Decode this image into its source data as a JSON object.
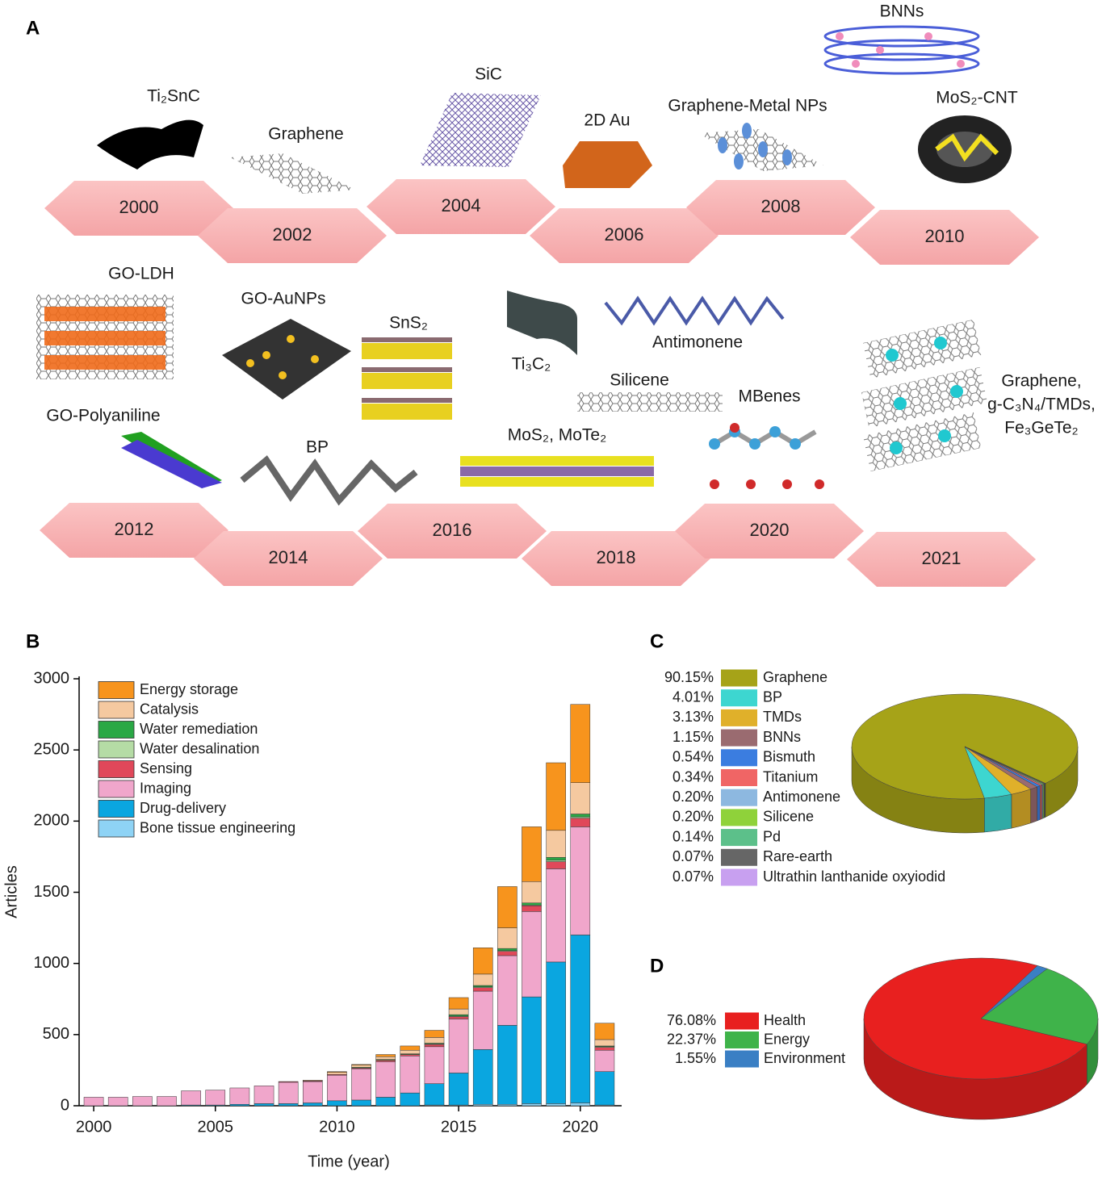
{
  "panel_a": {
    "label": "A",
    "years": [
      "2000",
      "2002",
      "2004",
      "2006",
      "2008",
      "2010",
      "2012",
      "2014",
      "2016",
      "2018",
      "2020",
      "2021"
    ],
    "materials": [
      "Ti₂SnC",
      "Graphene",
      "SiC",
      "2D Au",
      "Graphene-Metal NPs",
      "BNNs",
      "MoS₂-CNT",
      "GO-LDH",
      "GO-AuNPs",
      "SnS₂",
      "Ti₃C₂",
      "Antimonene",
      "Silicene",
      "MBenes",
      "GO-Polyaniline",
      "BP",
      "MoS₂, MoTe₂"
    ],
    "materials_multiline": [
      "Graphene,",
      "g-C₃N₄/TMDs,",
      "Fe₃GeTe₂"
    ]
  },
  "chart_data": [
    {
      "type": "bar",
      "label": "B",
      "stacked": true,
      "x_label": "Time (year)",
      "y_label": "Articles",
      "x": [
        2000,
        2001,
        2002,
        2003,
        2004,
        2005,
        2006,
        2007,
        2008,
        2009,
        2010,
        2011,
        2012,
        2013,
        2014,
        2015,
        2016,
        2017,
        2018,
        2019,
        2020,
        2021
      ],
      "series": [
        {
          "name": "Energy storage",
          "color": "#f7941d",
          "values": [
            0,
            0,
            0,
            0,
            0,
            0,
            0,
            0,
            0,
            0,
            5,
            5,
            15,
            30,
            50,
            80,
            185,
            290,
            385,
            475,
            550,
            115
          ]
        },
        {
          "name": "Catalysis",
          "color": "#f5c9a0",
          "values": [
            0,
            0,
            0,
            0,
            0,
            0,
            0,
            0,
            0,
            5,
            15,
            15,
            20,
            25,
            40,
            40,
            80,
            145,
            150,
            190,
            220,
            45
          ]
        },
        {
          "name": "Water remediation",
          "color": "#2aa845",
          "values": [
            0,
            0,
            0,
            0,
            0,
            0,
            0,
            0,
            0,
            0,
            0,
            5,
            5,
            5,
            5,
            10,
            10,
            15,
            15,
            20,
            20,
            5
          ]
        },
        {
          "name": "Water desalination",
          "color": "#b5dca5",
          "values": [
            0,
            0,
            0,
            0,
            0,
            0,
            0,
            0,
            0,
            0,
            0,
            0,
            0,
            0,
            5,
            5,
            5,
            5,
            5,
            10,
            10,
            5
          ]
        },
        {
          "name": "Sensing",
          "color": "#e0485a",
          "values": [
            0,
            0,
            0,
            0,
            0,
            0,
            0,
            0,
            5,
            5,
            5,
            5,
            10,
            10,
            15,
            15,
            25,
            30,
            40,
            50,
            60,
            20
          ]
        },
        {
          "name": "Imaging",
          "color": "#f0a6cb",
          "values": [
            60,
            60,
            65,
            65,
            100,
            105,
            115,
            125,
            150,
            150,
            180,
            220,
            250,
            260,
            260,
            380,
            410,
            490,
            600,
            655,
            760,
            150
          ]
        },
        {
          "name": "Drug-delivery",
          "color": "#0aa6e0",
          "values": [
            0,
            0,
            0,
            0,
            5,
            5,
            10,
            15,
            15,
            20,
            35,
            40,
            60,
            90,
            150,
            225,
            385,
            555,
            750,
            995,
            1180,
            235
          ]
        },
        {
          "name": "Bone tissue engineering",
          "color": "#8ed3f5",
          "values": [
            0,
            0,
            0,
            0,
            0,
            0,
            0,
            0,
            0,
            0,
            0,
            0,
            0,
            0,
            5,
            5,
            10,
            10,
            15,
            15,
            20,
            5
          ]
        }
      ],
      "xlim": [
        1999.4,
        2021.7
      ],
      "xticks": [
        2000,
        2005,
        2010,
        2015,
        2020
      ],
      "ylim": [
        0,
        3000
      ],
      "yticks": [
        0,
        500,
        1000,
        1500,
        2000,
        2500,
        3000
      ]
    },
    {
      "type": "pie",
      "label": "C",
      "categories": [
        "Graphene",
        "BP",
        "TMDs",
        "BNNs",
        "Bismuth",
        "Titanium",
        "Antimonene",
        "Silicene",
        "Pd",
        "Rare-earth",
        "Ultrathin lanthanide oxyiodid"
      ],
      "values": [
        90.15,
        4.01,
        3.13,
        1.15,
        0.54,
        0.34,
        0.2,
        0.2,
        0.14,
        0.07,
        0.07
      ],
      "value_labels": [
        "90.15%",
        "4.01%",
        "3.13%",
        "1.15%",
        "0.54%",
        "0.34%",
        "0.20%",
        "0.20%",
        "0.14%",
        "0.07%",
        "0.07%"
      ],
      "colors": [
        "#a6a318",
        "#3dd6d0",
        "#e0b02a",
        "#9a6b70",
        "#3b7de0",
        "#f06565",
        "#8db8e0",
        "#8fd23a",
        "#5cc08a",
        "#666666",
        "#c8a0f0"
      ]
    },
    {
      "type": "pie",
      "label": "D",
      "categories": [
        "Health",
        "Energy",
        "Environment"
      ],
      "values": [
        76.08,
        22.37,
        1.55
      ],
      "value_labels": [
        "76.08%",
        "22.37%",
        "1.55%"
      ],
      "colors": [
        "#e8201f",
        "#3fb34a",
        "#3a7fc4"
      ]
    }
  ]
}
